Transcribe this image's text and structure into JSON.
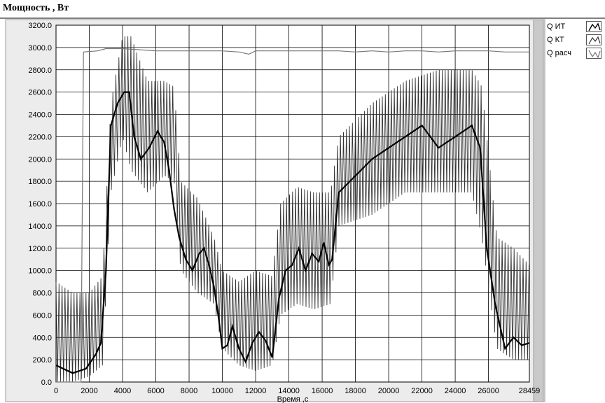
{
  "window": {
    "title": "Мощность , Вт"
  },
  "legend": {
    "items": [
      {
        "label": "Q ИТ",
        "icon": "line-icon",
        "color": "#000000"
      },
      {
        "label": "Q КТ",
        "icon": "line-icon",
        "color": "#333333"
      },
      {
        "label": "Q расч",
        "icon": "line-icon",
        "color": "#777777"
      }
    ]
  },
  "chart_data": {
    "type": "line",
    "title": "Мощность , Вт",
    "xlabel": "Время ,с",
    "ylabel": "",
    "xlim": [
      0,
      28459
    ],
    "ylim": [
      0,
      3200
    ],
    "grid": true,
    "legend_position": "right",
    "x_ticks": [
      "0",
      "2000",
      "4000",
      "6000",
      "8000",
      "10000",
      "12000",
      "14000",
      "16000",
      "18000",
      "20000",
      "22000",
      "24000",
      "26000",
      "28459"
    ],
    "y_ticks": [
      "0.0",
      "200.0",
      "400.0",
      "600.0",
      "800.0",
      "1000.0",
      "1200.0",
      "1400.0",
      "1600.0",
      "1800.0",
      "2000.0",
      "2200.0",
      "2400.0",
      "2600.0",
      "2800.0",
      "3000.0",
      "3200.0"
    ],
    "series": [
      {
        "name": "Q ИТ",
        "color": "#000000",
        "x": [
          0,
          1000,
          1800,
          2400,
          2700,
          3000,
          3300,
          3700,
          4100,
          4400,
          4700,
          5100,
          5600,
          6100,
          6500,
          6800,
          7100,
          7400,
          7800,
          8200,
          8600,
          8900,
          9200,
          9500,
          9800,
          10000,
          10300,
          10600,
          11000,
          11400,
          11800,
          12200,
          12600,
          13000,
          13400,
          13800,
          14200,
          14600,
          15000,
          15400,
          15800,
          16100,
          16400,
          16600,
          17000,
          18000,
          19000,
          20000,
          21000,
          22000,
          22500,
          23000,
          24000,
          25000,
          25500,
          25900,
          26400,
          27000,
          27500,
          28000,
          28459
        ],
        "y": [
          150,
          80,
          120,
          250,
          350,
          1000,
          2300,
          2500,
          2600,
          2600,
          2200,
          2000,
          2100,
          2250,
          2150,
          1900,
          1550,
          1300,
          1100,
          1000,
          1150,
          1200,
          1050,
          850,
          550,
          300,
          330,
          500,
          300,
          180,
          350,
          450,
          370,
          220,
          750,
          1000,
          1050,
          1200,
          1000,
          1150,
          1080,
          1250,
          1050,
          1100,
          1700,
          1850,
          2000,
          2100,
          2200,
          2300,
          2200,
          2100,
          2200,
          2300,
          2100,
          1200,
          700,
          300,
          400,
          330,
          350
        ]
      },
      {
        "name": "Q КТ",
        "color": "#333333",
        "envelope": "oscillating",
        "x": [
          0,
          1000,
          2000,
          2800,
          3300,
          4000,
          4500,
          5500,
          6500,
          7100,
          7500,
          8500,
          9500,
          10000,
          11000,
          12000,
          13000,
          13500,
          14500,
          15500,
          16500,
          17000,
          19000,
          21000,
          23000,
          25000,
          25600,
          26500,
          27500,
          28459
        ],
        "y_high": [
          900,
          800,
          800,
          950,
          2500,
          3100,
          3100,
          2700,
          2700,
          2650,
          1800,
          1650,
          1300,
          1000,
          900,
          1000,
          950,
          1600,
          1750,
          1700,
          1700,
          2200,
          2500,
          2700,
          2800,
          2800,
          2650,
          1300,
          1200,
          1050
        ],
        "y_low": [
          0,
          0,
          50,
          150,
          1700,
          2200,
          1900,
          1700,
          1850,
          1800,
          1000,
          800,
          700,
          300,
          150,
          100,
          150,
          600,
          700,
          650,
          700,
          1400,
          1500,
          1700,
          1700,
          1700,
          1300,
          300,
          200,
          200
        ]
      },
      {
        "name": "Q расч",
        "color": "#777777",
        "x": [
          0,
          1500,
          1650,
          2500,
          3000,
          4000,
          5000,
          6000,
          7000,
          8000,
          9000,
          10000,
          11000,
          11600,
          12000,
          13000,
          14000,
          15000,
          16000,
          17000,
          18000,
          19000,
          20000,
          21000,
          22000,
          23000,
          24000,
          25000,
          26000,
          27000,
          28459
        ],
        "y": [
          0,
          0,
          2960,
          2970,
          2990,
          2990,
          2980,
          2970,
          2970,
          2970,
          2970,
          2970,
          2960,
          2940,
          2970,
          2970,
          2970,
          2970,
          2970,
          2970,
          2960,
          2970,
          2960,
          2970,
          2970,
          2960,
          2970,
          2970,
          2970,
          2960,
          2960
        ]
      }
    ]
  }
}
